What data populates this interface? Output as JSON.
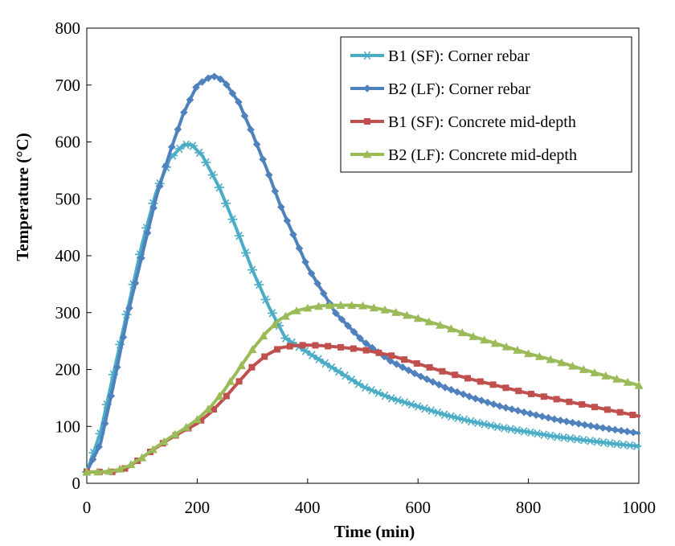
{
  "chart_data": {
    "type": "line",
    "xlabel": "Time (min)",
    "ylabel": "Temperature (°C)",
    "xlim": [
      0,
      1000
    ],
    "ylim": [
      0,
      800
    ],
    "xticks": [
      0,
      200,
      400,
      600,
      800,
      1000
    ],
    "yticks": [
      0,
      100,
      200,
      300,
      400,
      500,
      600,
      700,
      800
    ],
    "grid": false,
    "legend_position": "top-right",
    "series": [
      {
        "name": "B1 (SF): Corner rebar",
        "color": "#4bacc6",
        "marker": "asterisk",
        "x": [
          0,
          25,
          50,
          75,
          100,
          125,
          150,
          175,
          190,
          210,
          240,
          270,
          300,
          330,
          360,
          400,
          450,
          500,
          550,
          600,
          650,
          700,
          750,
          800,
          850,
          900,
          950,
          1000
        ],
        "y": [
          20,
          90,
          200,
          310,
          420,
          510,
          570,
          595,
          595,
          575,
          520,
          450,
          375,
          310,
          255,
          230,
          200,
          170,
          150,
          135,
          120,
          108,
          98,
          90,
          82,
          76,
          70,
          65
        ]
      },
      {
        "name": "B2 (LF): Corner rebar",
        "color": "#4f81bd",
        "marker": "diamond",
        "x": [
          0,
          25,
          50,
          75,
          100,
          125,
          150,
          175,
          200,
          225,
          235,
          250,
          275,
          300,
          325,
          350,
          375,
          400,
          450,
          500,
          550,
          600,
          650,
          700,
          750,
          800,
          850,
          900,
          950,
          1000
        ],
        "y": [
          20,
          70,
          180,
          300,
          400,
          500,
          580,
          650,
          700,
          715,
          715,
          705,
          670,
          615,
          555,
          490,
          435,
          380,
          300,
          250,
          215,
          190,
          168,
          150,
          135,
          123,
          112,
          103,
          95,
          88
        ]
      },
      {
        "name": "B1 (SF): Concrete mid-depth",
        "color": "#c0504d",
        "marker": "square",
        "x": [
          0,
          25,
          50,
          75,
          100,
          125,
          150,
          175,
          200,
          225,
          250,
          275,
          300,
          325,
          350,
          375,
          400,
          425,
          450,
          500,
          550,
          600,
          650,
          700,
          750,
          800,
          850,
          900,
          950,
          1000
        ],
        "y": [
          20,
          20,
          20,
          28,
          45,
          62,
          78,
          92,
          105,
          125,
          150,
          178,
          205,
          225,
          238,
          242,
          243,
          242,
          240,
          235,
          225,
          210,
          195,
          182,
          170,
          158,
          148,
          138,
          128,
          118
        ]
      },
      {
        "name": "B2 (LF): Concrete mid-depth",
        "color": "#9bbb59",
        "marker": "triangle",
        "x": [
          0,
          25,
          50,
          75,
          100,
          125,
          150,
          175,
          200,
          225,
          250,
          275,
          300,
          325,
          350,
          375,
          400,
          425,
          450,
          475,
          500,
          550,
          600,
          650,
          700,
          750,
          800,
          850,
          900,
          950,
          1000
        ],
        "y": [
          20,
          20,
          22,
          30,
          45,
          63,
          80,
          95,
          112,
          135,
          165,
          200,
          235,
          265,
          288,
          302,
          308,
          312,
          313,
          313,
          312,
          303,
          290,
          275,
          258,
          243,
          228,
          215,
          200,
          186,
          172
        ]
      }
    ]
  }
}
